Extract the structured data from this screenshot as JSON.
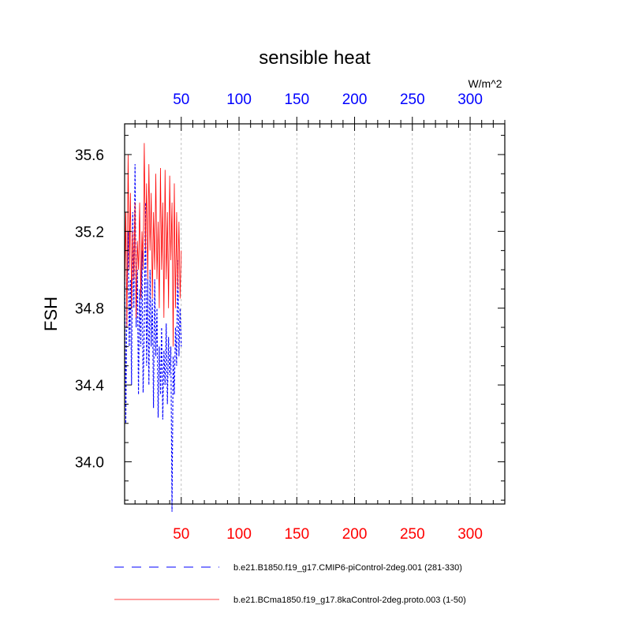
{
  "chart_data": {
    "type": "line",
    "title": "sensible heat",
    "ylabel": "FSH",
    "units_label": "W/m^2",
    "xlim": [
      1,
      330
    ],
    "ylim": [
      33.78,
      35.76
    ],
    "x_ticks": [
      50,
      100,
      150,
      200,
      250,
      300
    ],
    "x_tick_labels": [
      "50",
      "100",
      "150",
      "200",
      "250",
      "300"
    ],
    "y_ticks": [
      34.0,
      34.4,
      34.8,
      35.2,
      35.6
    ],
    "y_tick_labels": [
      "34.0",
      "34.4",
      "34.8",
      "35.2",
      "35.6"
    ],
    "top_axis_color": "#0000ff",
    "bottom_axis_color": "#ff0000",
    "grid": "vertical dotted at x ticks",
    "legend_position": "bottom",
    "series": [
      {
        "name": "b.e21.B1850.f19_g17.CMIP6-piControl-2deg.001 (281-330)",
        "color": "#0000ff",
        "dash": "dashed",
        "x": [
          1,
          2,
          3,
          4,
          5,
          6,
          7,
          8,
          9,
          10,
          11,
          12,
          13,
          14,
          15,
          16,
          17,
          18,
          19,
          20,
          21,
          22,
          23,
          24,
          25,
          26,
          27,
          28,
          29,
          30,
          31,
          32,
          33,
          34,
          35,
          36,
          37,
          38,
          39,
          40,
          41,
          42,
          43,
          44,
          45,
          46,
          47,
          48,
          49,
          50
        ],
        "values": [
          35.1,
          34.2,
          34.85,
          35.2,
          34.6,
          34.95,
          34.4,
          35.3,
          34.8,
          35.55,
          34.7,
          35.0,
          34.35,
          34.9,
          34.6,
          35.1,
          34.36,
          34.7,
          35.35,
          34.5,
          34.95,
          34.4,
          35.0,
          34.6,
          34.85,
          34.28,
          34.95,
          34.55,
          34.8,
          34.23,
          34.6,
          34.35,
          34.7,
          34.22,
          34.58,
          34.4,
          34.72,
          34.3,
          34.65,
          34.45,
          34.6,
          33.74,
          34.55,
          34.35,
          34.7,
          34.5,
          35.05,
          34.55,
          34.8,
          34.6
        ]
      },
      {
        "name": "b.e21.BCma1850.f19_g17.8kaControl-2deg.proto.003 (1-50)",
        "color": "#ff0000",
        "dash": "solid",
        "x": [
          1,
          2,
          3,
          4,
          5,
          6,
          7,
          8,
          9,
          10,
          11,
          12,
          13,
          14,
          15,
          16,
          17,
          18,
          19,
          20,
          21,
          22,
          23,
          24,
          25,
          26,
          27,
          28,
          29,
          30,
          31,
          32,
          33,
          34,
          35,
          36,
          37,
          38,
          39,
          40,
          41,
          42,
          43,
          44,
          45,
          46,
          47,
          48,
          49,
          50
        ],
        "values": [
          34.85,
          35.3,
          34.7,
          35.6,
          35.0,
          35.4,
          34.8,
          35.2,
          34.95,
          35.35,
          34.75,
          35.15,
          35.0,
          35.35,
          34.85,
          35.2,
          35.0,
          35.66,
          35.1,
          35.45,
          34.95,
          35.55,
          35.1,
          35.4,
          34.85,
          35.3,
          35.0,
          35.5,
          34.95,
          35.25,
          34.8,
          35.53,
          35.0,
          35.35,
          34.75,
          35.52,
          34.95,
          35.3,
          34.8,
          35.49,
          35.05,
          35.35,
          34.6,
          35.45,
          34.8,
          35.3,
          34.9,
          35.25,
          34.85,
          35.1
        ]
      }
    ]
  }
}
